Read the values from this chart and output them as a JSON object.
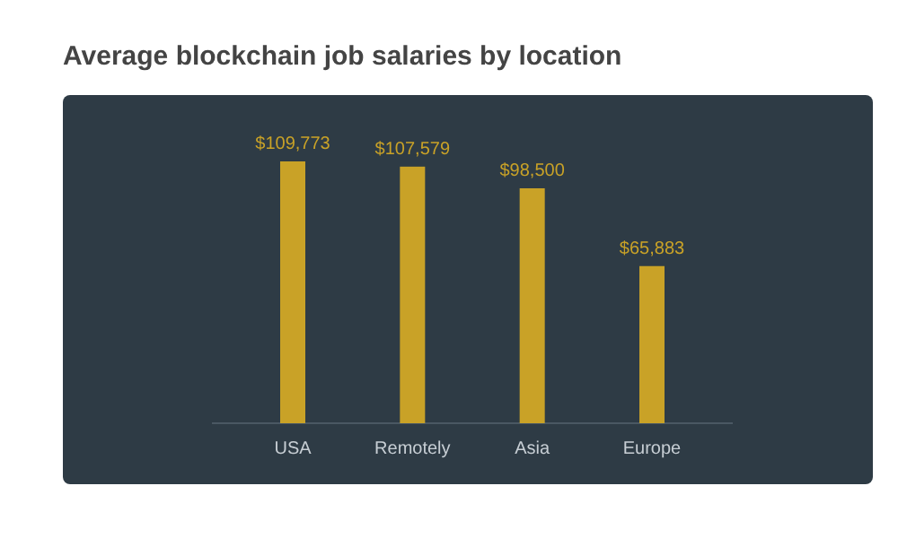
{
  "chart_data": {
    "type": "bar",
    "title": "Average blockchain job salaries by location",
    "categories": [
      "USA",
      "Remotely",
      "Asia",
      "Europe"
    ],
    "values": [
      109773,
      107579,
      98500,
      65883
    ],
    "value_labels": [
      "$109,773",
      "$107,579",
      "$98,500",
      "$65,883"
    ],
    "color": "#c9a227"
  }
}
